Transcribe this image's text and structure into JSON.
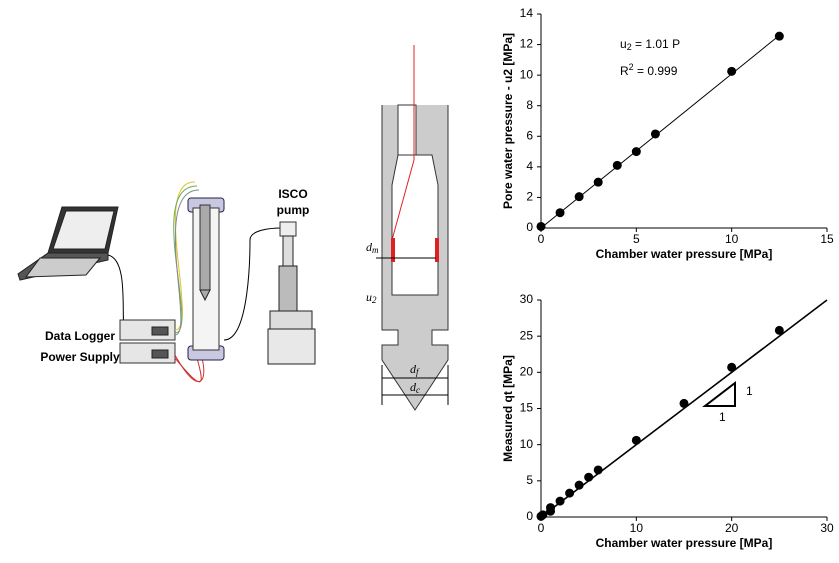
{
  "diagram": {
    "logger": "Data Logger",
    "power": "Power Supply",
    "pump": [
      "ISCO",
      "pump"
    ],
    "dm": {
      "base": "d",
      "sub": "m"
    },
    "u2": {
      "base": "u",
      "sub": "2"
    },
    "df": {
      "base": "d",
      "sub": "f"
    },
    "dc": {
      "base": "d",
      "sub": "c"
    }
  },
  "chart_data": [
    {
      "type": "scatter",
      "xlabel": "Chamber water pressure [MPa]",
      "ylabel": "Pore water pressure - u2 [MPa]",
      "x": [
        0,
        1,
        2,
        3,
        4,
        5,
        6,
        10,
        12.5
      ],
      "y": [
        0.1,
        1.0,
        2.05,
        3.0,
        4.1,
        5.0,
        6.15,
        10.25,
        12.55
      ],
      "color": "#000000",
      "fit": {
        "x": [
          0,
          12.5
        ],
        "y": [
          0,
          12.6
        ]
      },
      "equation": {
        "base": "u",
        "sub": "2",
        "rest": " = 1.01 P"
      },
      "r2": {
        "base": "R",
        "sup": "2",
        "rest": " = 0.999"
      },
      "xlim": [
        0,
        15
      ],
      "xticks": [
        0,
        5,
        10,
        15
      ],
      "ylim": [
        0,
        14
      ],
      "yticks": [
        0,
        2,
        4,
        6,
        8,
        10,
        12,
        14
      ]
    },
    {
      "type": "scatter",
      "xlabel": "Chamber water pressure [MPa]",
      "ylabel": "Measured qt [MPa]",
      "x": [
        0,
        0.2,
        1,
        1,
        2,
        3,
        4,
        5,
        6,
        10,
        15,
        20,
        25
      ],
      "y": [
        0.1,
        0.3,
        0.8,
        1.3,
        2.2,
        3.3,
        4.4,
        5.5,
        6.5,
        10.6,
        15.7,
        20.7,
        25.8
      ],
      "color": "#000000",
      "fit": {
        "x": [
          0,
          30
        ],
        "y": [
          0,
          30
        ]
      },
      "slope_labels": [
        "1",
        "1"
      ],
      "xlim": [
        0,
        30
      ],
      "xticks": [
        0,
        10,
        20,
        30
      ],
      "ylim": [
        0,
        30
      ],
      "yticks": [
        0,
        5,
        10,
        15,
        20,
        25,
        30
      ]
    }
  ]
}
